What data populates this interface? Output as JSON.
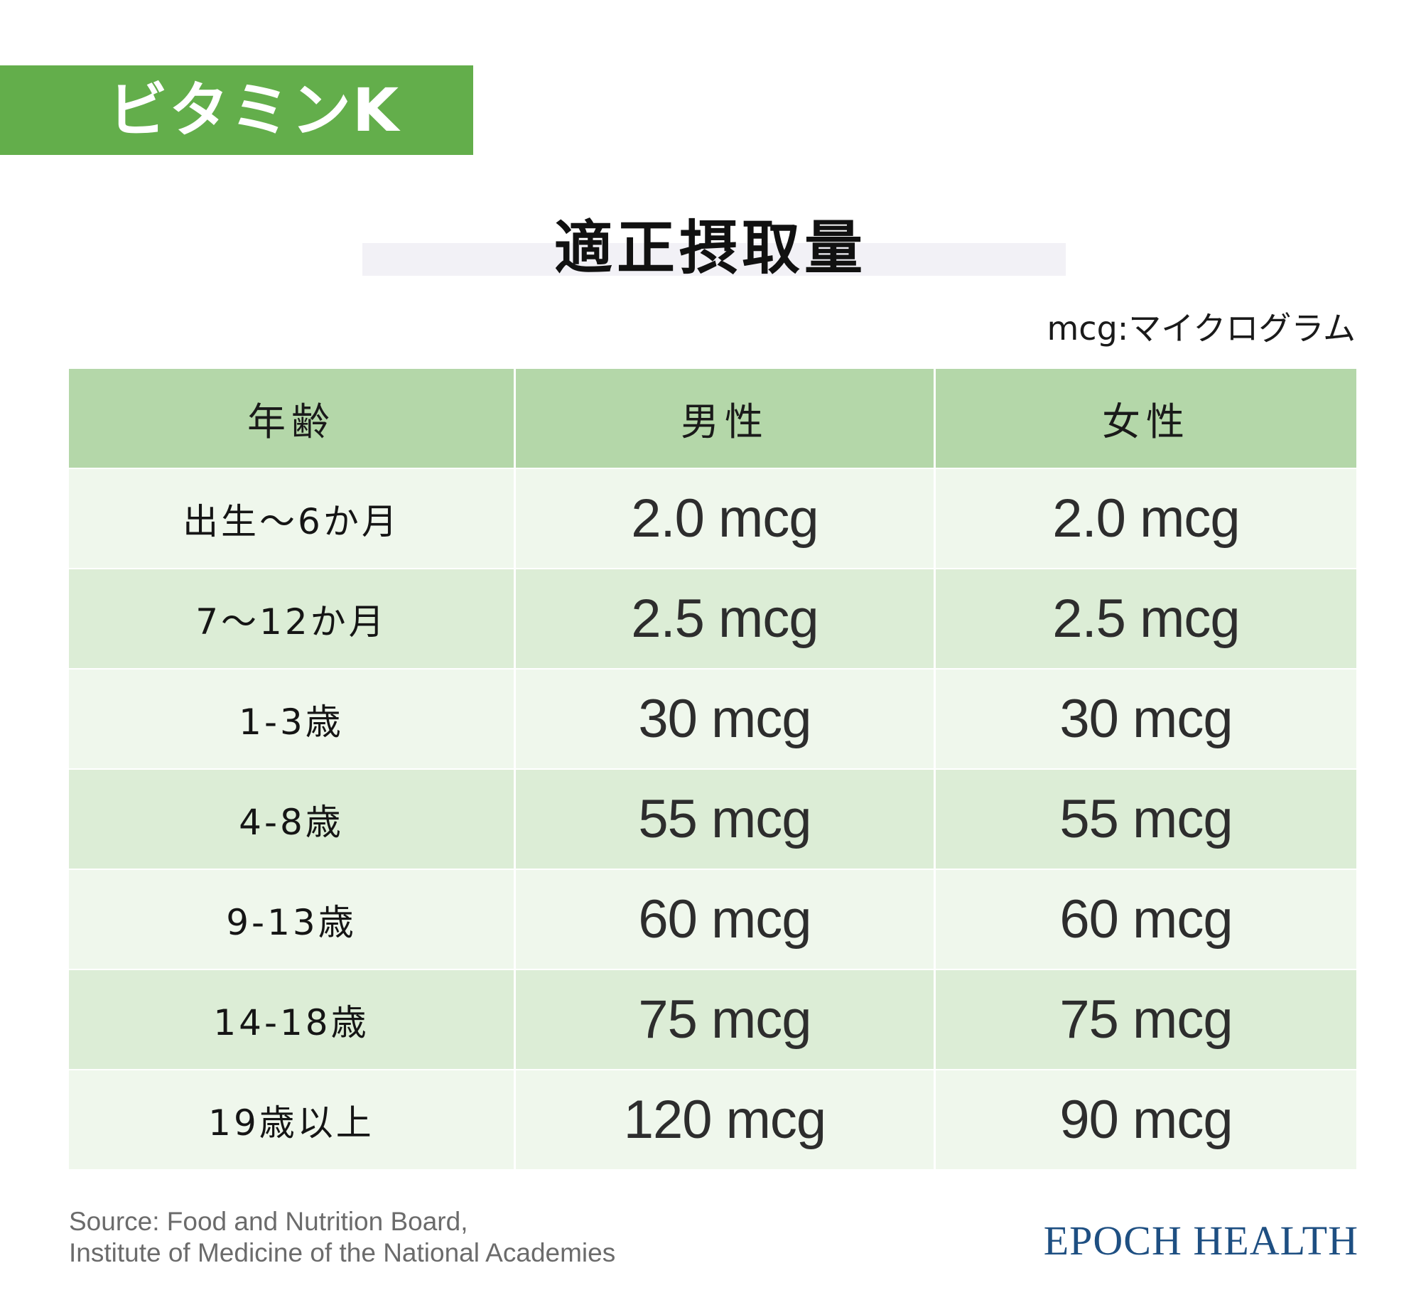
{
  "banner": {
    "title": "ビタミンK",
    "color": "#63ae4b"
  },
  "heading": "適正摂取量",
  "unit_note": "mcg:マイクログラム",
  "table": {
    "headers": [
      "年齢",
      "男性",
      "女性"
    ],
    "rows": [
      {
        "age": "出生～6か月",
        "male": "2.0 mcg",
        "female": "2.0 mcg"
      },
      {
        "age": "7～12か月",
        "male": "2.5 mcg",
        "female": "2.5 mcg"
      },
      {
        "age": "1-3歳",
        "male": "30 mcg",
        "female": "30 mcg"
      },
      {
        "age": "4-8歳",
        "male": "55 mcg",
        "female": "55 mcg"
      },
      {
        "age": "9-13歳",
        "male": "60 mcg",
        "female": "60 mcg"
      },
      {
        "age": "14-18歳",
        "male": "75 mcg",
        "female": "75 mcg"
      },
      {
        "age": "19歳以上",
        "male": "120 mcg",
        "female": "90 mcg"
      }
    ],
    "colors": {
      "header": "#b4d7a9",
      "row_light": "#eff7ec",
      "row_dark": "#dcedd6"
    }
  },
  "source": {
    "line1": "Source:  Food and Nutrition Board,",
    "line2": "Institute of Medicine of the National Academies"
  },
  "brand": "EPOCH HEALTH"
}
